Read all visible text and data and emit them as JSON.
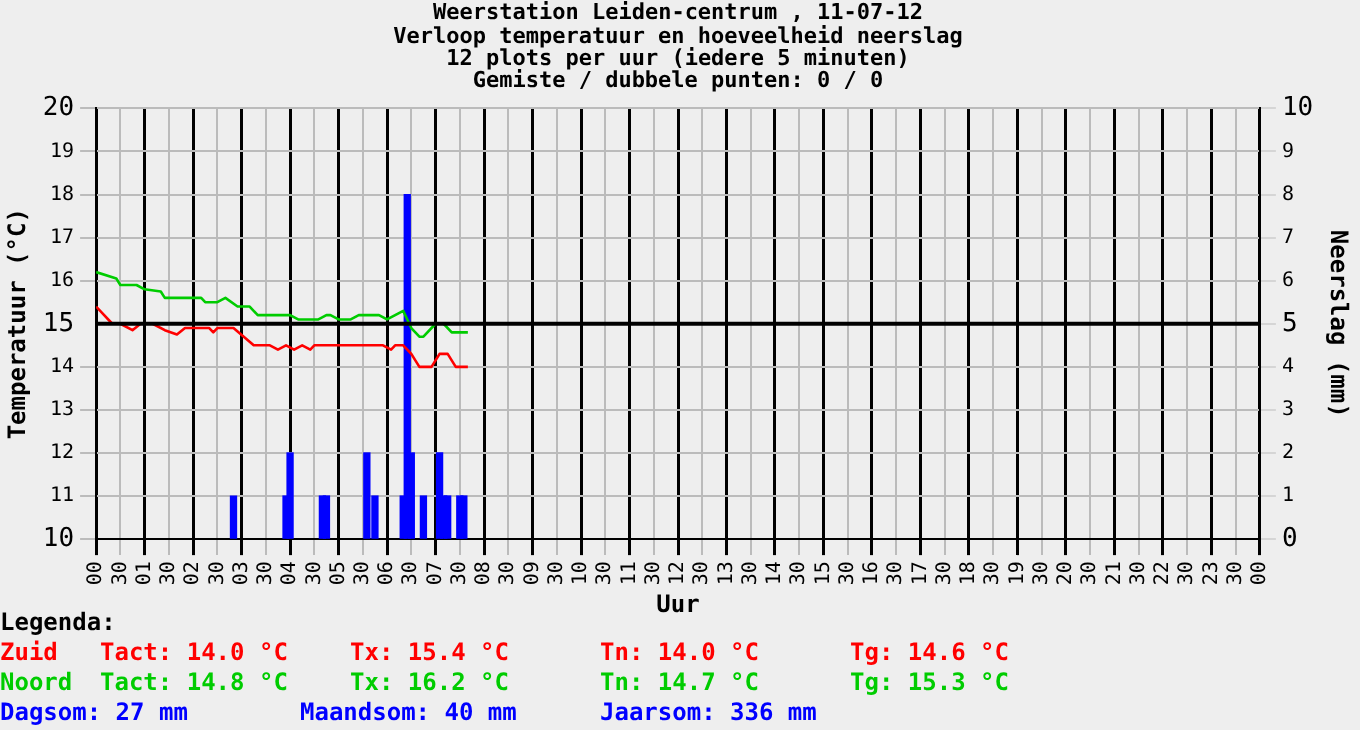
{
  "chart_data": {
    "type": "line",
    "title": "Weerstation Leiden-centrum , 11-07-12",
    "subtitle": "Verloop temperatuur en hoeveelheid neerslag\n12 plots per uur (iedere 5 minuten)\nGemiste / dubbele punten: 0 / 0",
    "xlabel": "Uur",
    "ylabel": "Temperatuur (°C)",
    "y2label": "Neerslag (mm)",
    "xlim": [
      "--07-11T00:00",
      "--07-12T00:00"
    ],
    "xticks": [
      {
        "value": "--07-11T00:00",
        "label": "00"
      },
      {
        "value": "--07-11T00:30",
        "label": "30"
      },
      {
        "value": "--07-11T01:00",
        "label": "01"
      },
      {
        "value": "--07-11T01:30",
        "label": "30"
      },
      {
        "value": "--07-11T02:00",
        "label": "02"
      },
      {
        "value": "--07-11T02:30",
        "label": "30"
      },
      {
        "value": "--07-11T03:00",
        "label": "03"
      },
      {
        "value": "--07-11T03:30",
        "label": "30"
      },
      {
        "value": "--07-11T04:00",
        "label": "04"
      },
      {
        "value": "--07-11T04:30",
        "label": "30"
      },
      {
        "value": "--07-11T05:00",
        "label": "05"
      },
      {
        "value": "--07-11T05:30",
        "label": "30"
      },
      {
        "value": "--07-11T06:00",
        "label": "06"
      },
      {
        "value": "--07-11T06:30",
        "label": "30"
      },
      {
        "value": "--07-11T07:00",
        "label": "07"
      },
      {
        "value": "--07-11T07:30",
        "label": "30"
      },
      {
        "value": "--07-11T08:00",
        "label": "08"
      },
      {
        "value": "--07-11T08:30",
        "label": "30"
      },
      {
        "value": "--07-11T09:00",
        "label": "09"
      },
      {
        "value": "--07-11T09:30",
        "label": "30"
      },
      {
        "value": "--07-11T10:00",
        "label": "10"
      },
      {
        "value": "--07-11T10:30",
        "label": "30"
      },
      {
        "value": "--07-11T11:00",
        "label": "11"
      },
      {
        "value": "--07-11T11:30",
        "label": "30"
      },
      {
        "value": "--07-11T12:00",
        "label": "12"
      },
      {
        "value": "--07-11T12:30",
        "label": "30"
      },
      {
        "value": "--07-11T13:00",
        "label": "13"
      },
      {
        "value": "--07-11T13:30",
        "label": "30"
      },
      {
        "value": "--07-11T14:00",
        "label": "14"
      },
      {
        "value": "--07-11T14:30",
        "label": "30"
      },
      {
        "value": "--07-11T15:00",
        "label": "15"
      },
      {
        "value": "--07-11T15:30",
        "label": "30"
      },
      {
        "value": "--07-11T16:00",
        "label": "16"
      },
      {
        "value": "--07-11T16:30",
        "label": "30"
      },
      {
        "value": "--07-11T17:00",
        "label": "17"
      },
      {
        "value": "--07-11T17:30",
        "label": "30"
      },
      {
        "value": "--07-11T18:00",
        "label": "18"
      },
      {
        "value": "--07-11T18:30",
        "label": "30"
      },
      {
        "value": "--07-11T19:00",
        "label": "19"
      },
      {
        "value": "--07-11T19:30",
        "label": "30"
      },
      {
        "value": "--07-11T20:00",
        "label": "20"
      },
      {
        "value": "--07-11T20:30",
        "label": "30"
      },
      {
        "value": "--07-11T21:00",
        "label": "21"
      },
      {
        "value": "--07-11T21:30",
        "label": "30"
      },
      {
        "value": "--07-11T22:00",
        "label": "22"
      },
      {
        "value": "--07-11T22:30",
        "label": "30"
      },
      {
        "value": "--07-11T23:00",
        "label": "23"
      },
      {
        "value": "--07-11T23:30",
        "label": "30"
      },
      {
        "value": "--07-12T00:00",
        "label": "00"
      }
    ],
    "ylim": [
      10,
      20
    ],
    "yticks": [
      10,
      11,
      12,
      13,
      14,
      15,
      16,
      17,
      18,
      19,
      20
    ],
    "y2lim": [
      0,
      10
    ],
    "y2ticks": [
      0,
      1,
      2,
      3,
      4,
      5,
      6,
      7,
      8,
      9,
      10
    ],
    "series": [
      {
        "name": "Zuid",
        "color": "#ff0000",
        "x": [
          "--07-11T00:00",
          "--07-11T00:20",
          "--07-11T00:30",
          "--07-11T00:45",
          "--07-11T00:55",
          "--07-11T01:10",
          "--07-11T01:25",
          "--07-11T01:40",
          "--07-11T01:50",
          "--07-11T02:20",
          "--07-11T02:25",
          "--07-11T02:30",
          "--07-11T02:50",
          "--07-11T03:15",
          "--07-11T03:35",
          "--07-11T03:45",
          "--07-11T03:55",
          "--07-11T04:05",
          "--07-11T04:15",
          "--07-11T04:25",
          "--07-11T04:30",
          "--07-11T05:55",
          "--07-11T06:05",
          "--07-11T06:10",
          "--07-11T06:20",
          "--07-11T06:30",
          "--07-11T06:40",
          "--07-11T06:55",
          "--07-11T07:05",
          "--07-11T07:15",
          "--07-11T07:25",
          "--07-11T07:40"
        ],
        "values": [
          15.4,
          15.0,
          15.0,
          14.85,
          15.0,
          15.0,
          14.85,
          14.75,
          14.9,
          14.9,
          14.8,
          14.9,
          14.9,
          14.5,
          14.5,
          14.4,
          14.5,
          14.4,
          14.5,
          14.4,
          14.5,
          14.5,
          14.4,
          14.5,
          14.5,
          14.3,
          14.0,
          14.0,
          14.3,
          14.3,
          14.0,
          14.0
        ]
      },
      {
        "name": "Noord",
        "color": "#00cc00",
        "x": [
          "--07-11T00:00",
          "--07-11T00:25",
          "--07-11T00:30",
          "--07-11T00:50",
          "--07-11T01:00",
          "--07-11T01:20",
          "--07-11T01:25",
          "--07-11T02:10",
          "--07-11T02:15",
          "--07-11T02:30",
          "--07-11T02:40",
          "--07-11T02:55",
          "--07-11T03:10",
          "--07-11T03:20",
          "--07-11T04:00",
          "--07-11T04:10",
          "--07-11T04:35",
          "--07-11T04:45",
          "--07-11T04:50",
          "--07-11T05:00",
          "--07-11T05:15",
          "--07-11T05:25",
          "--07-11T05:50",
          "--07-11T06:00",
          "--07-11T06:20",
          "--07-11T06:30",
          "--07-11T06:40",
          "--07-11T06:45",
          "--07-11T07:00",
          "--07-11T07:10",
          "--07-11T07:20",
          "--07-11T07:40"
        ],
        "values": [
          16.2,
          16.05,
          15.9,
          15.9,
          15.8,
          15.75,
          15.6,
          15.6,
          15.5,
          15.5,
          15.6,
          15.4,
          15.4,
          15.2,
          15.2,
          15.1,
          15.1,
          15.2,
          15.2,
          15.1,
          15.1,
          15.2,
          15.2,
          15.1,
          15.3,
          14.9,
          14.7,
          14.7,
          15.0,
          15.0,
          14.8,
          14.8
        ]
      },
      {
        "type": "bar",
        "axis": "y2",
        "color": "#0000ff",
        "x": [
          "--07-11T02:50",
          "--07-11T03:55",
          "--07-11T04:00",
          "--07-11T04:40",
          "--07-11T04:45",
          "--07-11T05:35",
          "--07-11T05:45",
          "--07-11T06:20",
          "--07-11T06:25",
          "--07-11T06:30",
          "--07-11T06:45",
          "--07-11T07:05",
          "--07-11T07:10",
          "--07-11T07:15",
          "--07-11T07:30",
          "--07-11T07:35"
        ],
        "values": [
          1,
          1,
          2,
          1,
          1,
          2,
          1,
          1,
          8,
          2,
          1,
          2,
          1,
          1,
          1,
          1
        ]
      }
    ],
    "ref_lines": [
      {
        "axis": "y",
        "value": 15,
        "color": "#000000"
      }
    ],
    "grid": true,
    "legend": "bottom",
    "annotations": [
      "Legenda:",
      "Tact: 14.0 °C",
      "Tx: 15.4 °C",
      "Tn: 14.0 °C",
      "Tg: 14.6 °C",
      "Tact: 14.8 °C",
      "Tx: 16.2 °C",
      "Tn: 14.7 °C",
      "Tg: 15.3 °C",
      "Dagsom: 27 mm",
      "Maandsom: 40 mm",
      "Jaarsom: 336 mm"
    ]
  }
}
